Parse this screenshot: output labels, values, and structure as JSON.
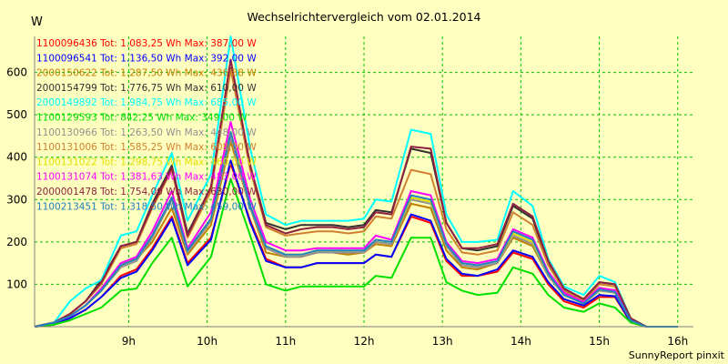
{
  "chart_data": {
    "type": "line",
    "title": "Wechselrichtervergleich vom 02.01.2014",
    "ylabel": "W",
    "xlabel": "",
    "footer": "SunnyReport pinxit",
    "ylim": [
      0,
      685
    ],
    "xlim": [
      7.8,
      16.2
    ],
    "grid": true,
    "legend_position": "top-left",
    "y_ticks": [
      100,
      200,
      300,
      400,
      500,
      600
    ],
    "x_ticks": [
      {
        "value": 9,
        "label": "9h"
      },
      {
        "value": 10,
        "label": "10h"
      },
      {
        "value": 11,
        "label": "11h"
      },
      {
        "value": 12,
        "label": "12h"
      },
      {
        "value": 13,
        "label": "13h"
      },
      {
        "value": 14,
        "label": "14h"
      },
      {
        "value": 15,
        "label": "15h"
      },
      {
        "value": 16,
        "label": "16h"
      }
    ],
    "x": [
      7.8,
      8.05,
      8.25,
      8.45,
      8.65,
      8.9,
      9.1,
      9.3,
      9.55,
      9.75,
      10.05,
      10.3,
      10.55,
      10.75,
      11.0,
      11.2,
      11.4,
      11.6,
      11.8,
      12.0,
      12.15,
      12.35,
      12.6,
      12.85,
      13.05,
      13.25,
      13.45,
      13.7,
      13.9,
      14.15,
      14.35,
      14.55,
      14.8,
      15.0,
      15.2,
      15.4,
      15.6,
      15.8,
      16.0
    ],
    "series": [
      {
        "name": "1100096436 Tot: 1.083,25 Wh Max: 387,00 W",
        "color": "#ff0000",
        "values": [
          0,
          5,
          20,
          40,
          70,
          120,
          135,
          185,
          260,
          150,
          210,
          385,
          250,
          160,
          140,
          140,
          150,
          150,
          150,
          150,
          170,
          165,
          260,
          245,
          155,
          120,
          120,
          130,
          175,
          160,
          100,
          60,
          45,
          70,
          70,
          10,
          0,
          0,
          0
        ]
      },
      {
        "name": "1100096541 Tot: 1.136,50 Wh Max: 392,00 W",
        "color": "#0000ff",
        "values": [
          0,
          5,
          20,
          40,
          70,
          115,
          130,
          180,
          255,
          145,
          205,
          392,
          245,
          155,
          140,
          140,
          150,
          150,
          150,
          150,
          170,
          165,
          265,
          250,
          160,
          125,
          120,
          135,
          180,
          165,
          105,
          65,
          50,
          75,
          72,
          12,
          0,
          0,
          0
        ]
      },
      {
        "name": "2000150622 Tot: 1.287,50 Wh Max: 436,88 W",
        "color": "#c08000",
        "values": [
          0,
          10,
          25,
          50,
          90,
          150,
          160,
          200,
          280,
          170,
          240,
          437,
          280,
          175,
          165,
          165,
          175,
          175,
          170,
          175,
          195,
          190,
          290,
          280,
          180,
          140,
          135,
          150,
          210,
          190,
          120,
          75,
          55,
          85,
          82,
          15,
          0,
          0,
          0
        ]
      },
      {
        "name": "2000154799 Tot: 1.776,75 Wh Max: 610,00 W",
        "color": "#303030",
        "values": [
          0,
          10,
          30,
          60,
          110,
          190,
          200,
          290,
          380,
          220,
          330,
          610,
          380,
          245,
          230,
          240,
          240,
          240,
          235,
          240,
          275,
          270,
          420,
          410,
          245,
          185,
          180,
          190,
          285,
          255,
          150,
          90,
          65,
          105,
          100,
          20,
          0,
          0,
          0
        ]
      },
      {
        "name": "2000149892 Tot: 1.984,75 Wh Max: 685,00 W",
        "color": "#00ffff",
        "values": [
          0,
          10,
          60,
          90,
          110,
          215,
          225,
          310,
          410,
          250,
          360,
          685,
          420,
          265,
          240,
          250,
          250,
          250,
          250,
          255,
          300,
          295,
          465,
          455,
          265,
          200,
          200,
          205,
          320,
          285,
          160,
          95,
          75,
          120,
          105,
          20,
          0,
          0,
          0
        ]
      },
      {
        "name": "1100129593 Tot: 842,25 Wh Max: 349,00 W",
        "color": "#00e000",
        "values": [
          0,
          5,
          15,
          30,
          45,
          85,
          90,
          150,
          210,
          95,
          165,
          349,
          215,
          100,
          85,
          95,
          95,
          95,
          95,
          95,
          120,
          115,
          210,
          210,
          105,
          85,
          75,
          80,
          140,
          125,
          75,
          45,
          35,
          55,
          45,
          10,
          0,
          0,
          0
        ]
      },
      {
        "name": "1100130966 Tot: 1.263,50 Wh Max: 448,00 W",
        "color": "#909090",
        "values": [
          0,
          10,
          25,
          50,
          85,
          140,
          155,
          210,
          300,
          175,
          250,
          448,
          280,
          185,
          165,
          165,
          175,
          175,
          175,
          175,
          200,
          195,
          300,
          290,
          190,
          145,
          140,
          150,
          215,
          195,
          120,
          75,
          55,
          85,
          80,
          15,
          0,
          0,
          0
        ]
      },
      {
        "name": "1100131006 Tot: 1.585,25 Wh Max: 608,00 W",
        "color": "#d08030",
        "values": [
          0,
          10,
          30,
          60,
          100,
          185,
          195,
          280,
          370,
          210,
          320,
          608,
          370,
          235,
          215,
          220,
          225,
          225,
          220,
          225,
          260,
          255,
          370,
          360,
          230,
          175,
          170,
          180,
          270,
          240,
          145,
          85,
          60,
          100,
          95,
          18,
          0,
          0,
          0
        ]
      },
      {
        "name": "1100131022 Tot: 1.298,75 Wh Max: 460,00 W",
        "color": "#e0e000",
        "values": [
          0,
          10,
          25,
          50,
          85,
          145,
          160,
          215,
          305,
          180,
          255,
          460,
          285,
          190,
          170,
          170,
          180,
          180,
          180,
          180,
          205,
          200,
          305,
          295,
          195,
          150,
          145,
          155,
          220,
          200,
          125,
          75,
          55,
          88,
          82,
          15,
          0,
          0,
          0
        ]
      },
      {
        "name": "1100131074 Tot: 1.381,63 Wh Max: 483,00 W",
        "color": "#ff00ff",
        "values": [
          0,
          10,
          25,
          50,
          90,
          150,
          165,
          225,
          320,
          185,
          270,
          483,
          300,
          200,
          180,
          180,
          185,
          185,
          185,
          185,
          215,
          205,
          320,
          310,
          200,
          155,
          150,
          160,
          230,
          210,
          130,
          80,
          58,
          92,
          86,
          16,
          0,
          0,
          0
        ]
      },
      {
        "name": "2000001478 Tot: 1.754,00 Wh Max: 630,00 W",
        "color": "#902040",
        "values": [
          0,
          10,
          30,
          60,
          105,
          190,
          200,
          285,
          375,
          215,
          330,
          630,
          380,
          240,
          220,
          230,
          235,
          235,
          230,
          235,
          270,
          265,
          425,
          420,
          245,
          185,
          185,
          195,
          290,
          260,
          155,
          90,
          65,
          105,
          100,
          20,
          0,
          0,
          0
        ]
      },
      {
        "name": "1100213451 Tot: 1.318,50 Wh Max: 459,00 W",
        "color": "#2080c0",
        "values": [
          0,
          10,
          25,
          50,
          85,
          145,
          160,
          215,
          305,
          180,
          255,
          459,
          285,
          190,
          170,
          170,
          180,
          180,
          180,
          180,
          205,
          200,
          310,
          300,
          195,
          150,
          145,
          155,
          225,
          205,
          125,
          75,
          55,
          88,
          82,
          15,
          0,
          0,
          0
        ]
      }
    ]
  }
}
